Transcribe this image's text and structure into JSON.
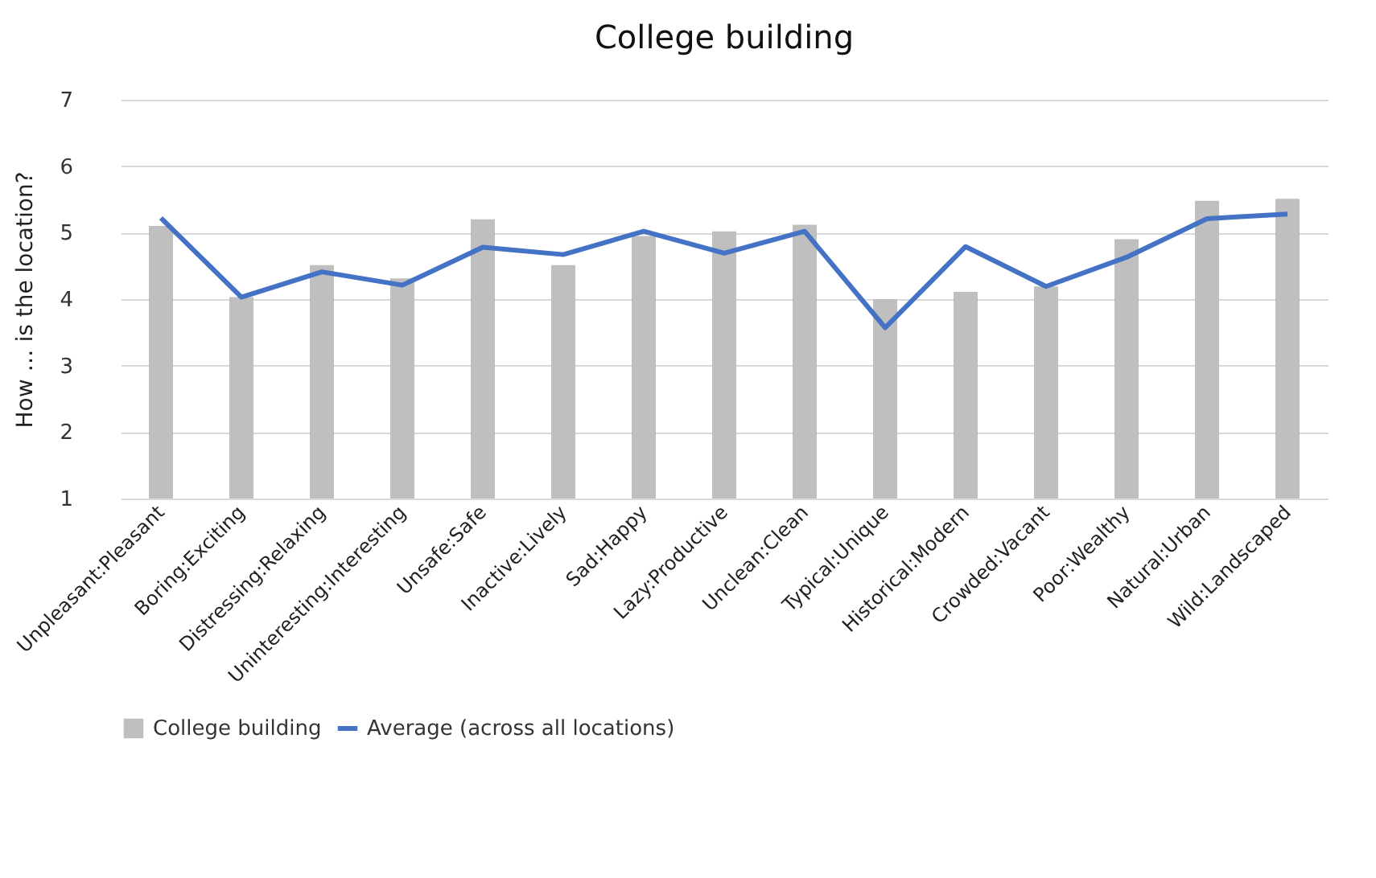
{
  "chart_data": {
    "type": "bar",
    "title": "College building",
    "ylabel": "How … is the location?",
    "categories": [
      "Unpleasant:Pleasant",
      "Boring:Exciting",
      "Distressing:Relaxing",
      "Uninteresting:Interesting",
      "Unsafe:Safe",
      "Inactive:Lively",
      "Sad:Happy",
      "Lazy:Productive",
      "Unclean:Clean",
      "Typical:Unique",
      "Historical:Modern",
      "Crowded:Vacant",
      "Poor:Wealthy",
      "Natural:Urban",
      "Wild:Landscaped"
    ],
    "series": [
      {
        "name": "College building",
        "color": "#bfbfbf",
        "values": [
          5.1,
          4.03,
          4.51,
          4.31,
          5.2,
          4.51,
          4.95,
          5.02,
          5.12,
          4.0,
          4.11,
          4.19,
          4.9,
          5.48,
          5.51
        ]
      },
      {
        "name": "Average (across all locations)",
        "type": "line",
        "color": "#4472c4",
        "values": [
          5.22,
          4.03,
          4.41,
          4.21,
          4.78,
          4.67,
          5.02,
          4.69,
          5.02,
          3.57,
          4.79,
          4.19,
          4.63,
          5.21,
          5.28
        ]
      }
    ],
    "ylim": [
      1,
      7
    ],
    "yticks": [
      1,
      2,
      3,
      4,
      5,
      6,
      7
    ],
    "grid": "y",
    "legend": "bottom"
  }
}
